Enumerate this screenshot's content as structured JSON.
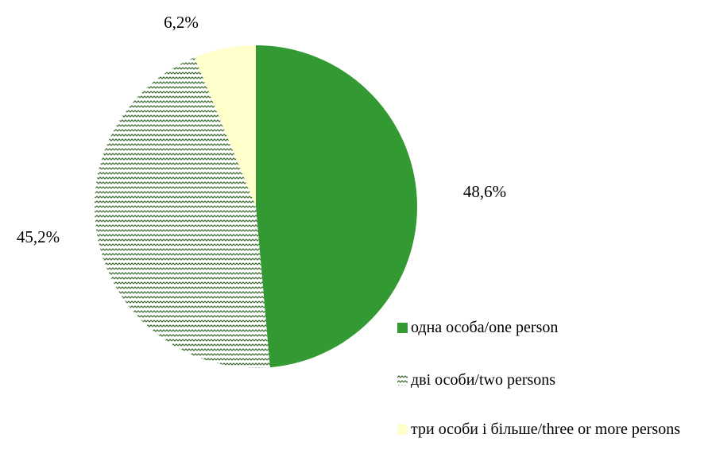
{
  "chart_data": {
    "type": "pie",
    "categories": [
      "одна особа/one person",
      "дві особи/two persons",
      "три особи і більше/three or more persons"
    ],
    "values": [
      48.6,
      45.2,
      6.2
    ],
    "value_labels": [
      "48,6%",
      "45,2%",
      "6,2%"
    ],
    "colors": [
      "#339933",
      "pattern",
      "#ffffcc"
    ],
    "legend": "right"
  }
}
